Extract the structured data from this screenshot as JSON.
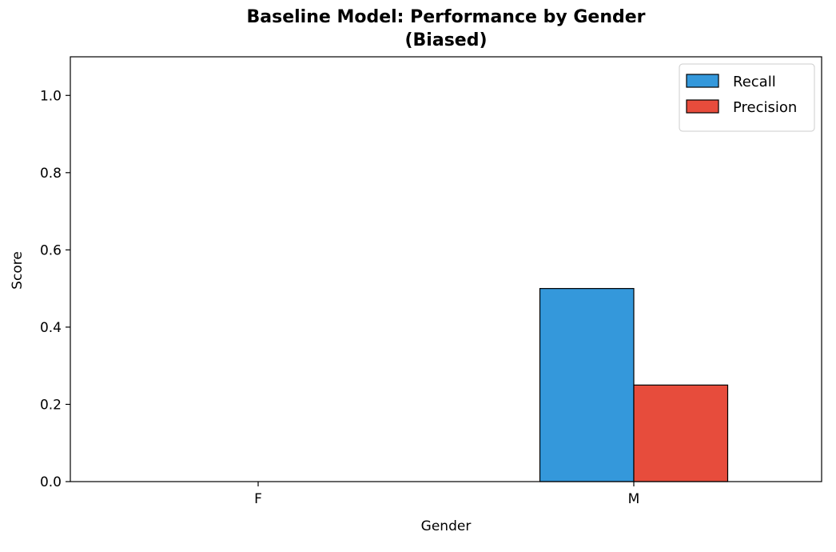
{
  "chart_data": {
    "type": "bar",
    "title": "Baseline Model: Performance by Gender\n(Biased)",
    "title_lines": [
      "Baseline Model: Performance by Gender",
      "(Biased)"
    ],
    "xlabel": "Gender",
    "ylabel": "Score",
    "categories": [
      "F",
      "M"
    ],
    "series": [
      {
        "name": "Recall",
        "values": [
          0.0,
          0.5
        ],
        "color": "#3498db"
      },
      {
        "name": "Precision",
        "values": [
          0.0,
          0.25
        ],
        "color": "#e74c3c"
      }
    ],
    "ylim": [
      0,
      1.1
    ],
    "yticks": [
      0.0,
      0.2,
      0.4,
      0.6,
      0.8,
      1.0
    ],
    "ytick_labels": [
      "0.0",
      "0.2",
      "0.4",
      "0.6",
      "0.8",
      "1.0"
    ],
    "grid": false,
    "legend_position": "top-right",
    "bar_edge_color": "#000000"
  }
}
